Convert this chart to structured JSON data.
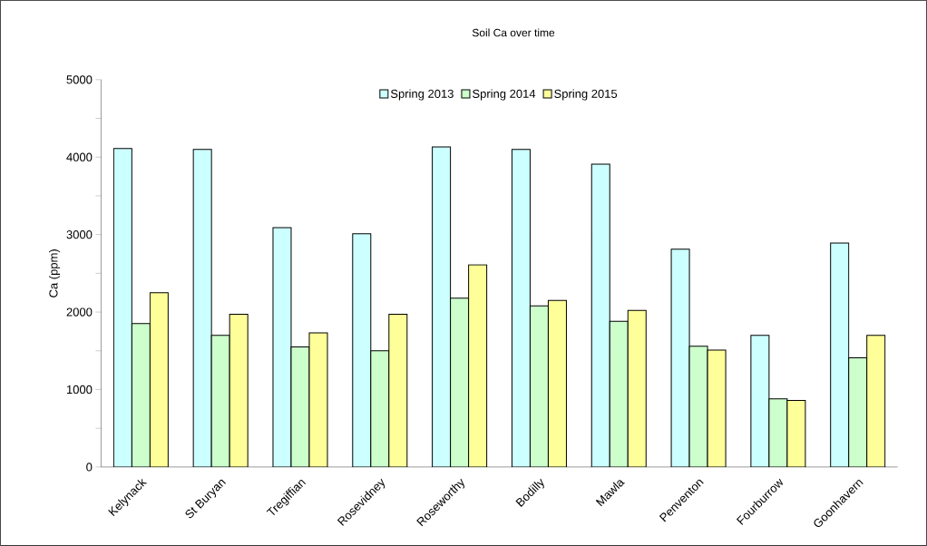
{
  "chart_data": {
    "type": "bar",
    "title": "Soil Ca over time",
    "ylabel": "Ca (ppm)",
    "categories": [
      "Kelynack",
      "St Buryan",
      "Tregiffian",
      "Rosevidney",
      "Roseworthy",
      "Bodilly",
      "Mawla",
      "Penventon",
      "Fourburrow",
      "Goonhavern"
    ],
    "series": [
      {
        "name": "Spring 2013",
        "color": "#ccffff",
        "values": [
          4110,
          4100,
          3090,
          3010,
          4130,
          4100,
          3910,
          2810,
          1700,
          2890
        ]
      },
      {
        "name": "Spring 2014",
        "color": "#ccffcc",
        "values": [
          1850,
          1700,
          1550,
          1500,
          2180,
          2080,
          1880,
          1560,
          880,
          1410
        ]
      },
      {
        "name": "Spring 2015",
        "color": "#ffff99",
        "values": [
          2250,
          1970,
          1730,
          1970,
          2610,
          2150,
          2020,
          1510,
          860,
          1700
        ]
      }
    ],
    "ylim": [
      0,
      5000
    ],
    "yticks": [
      0,
      {
        "value": 500,
        "label": null
      },
      1000,
      {
        "value": 1500,
        "label": null
      },
      2000,
      {
        "value": 2500,
        "label": null
      },
      3000,
      {
        "value": 3500,
        "label": null
      },
      4000,
      {
        "value": 4500,
        "label": null
      },
      5000
    ],
    "legend": "top"
  }
}
